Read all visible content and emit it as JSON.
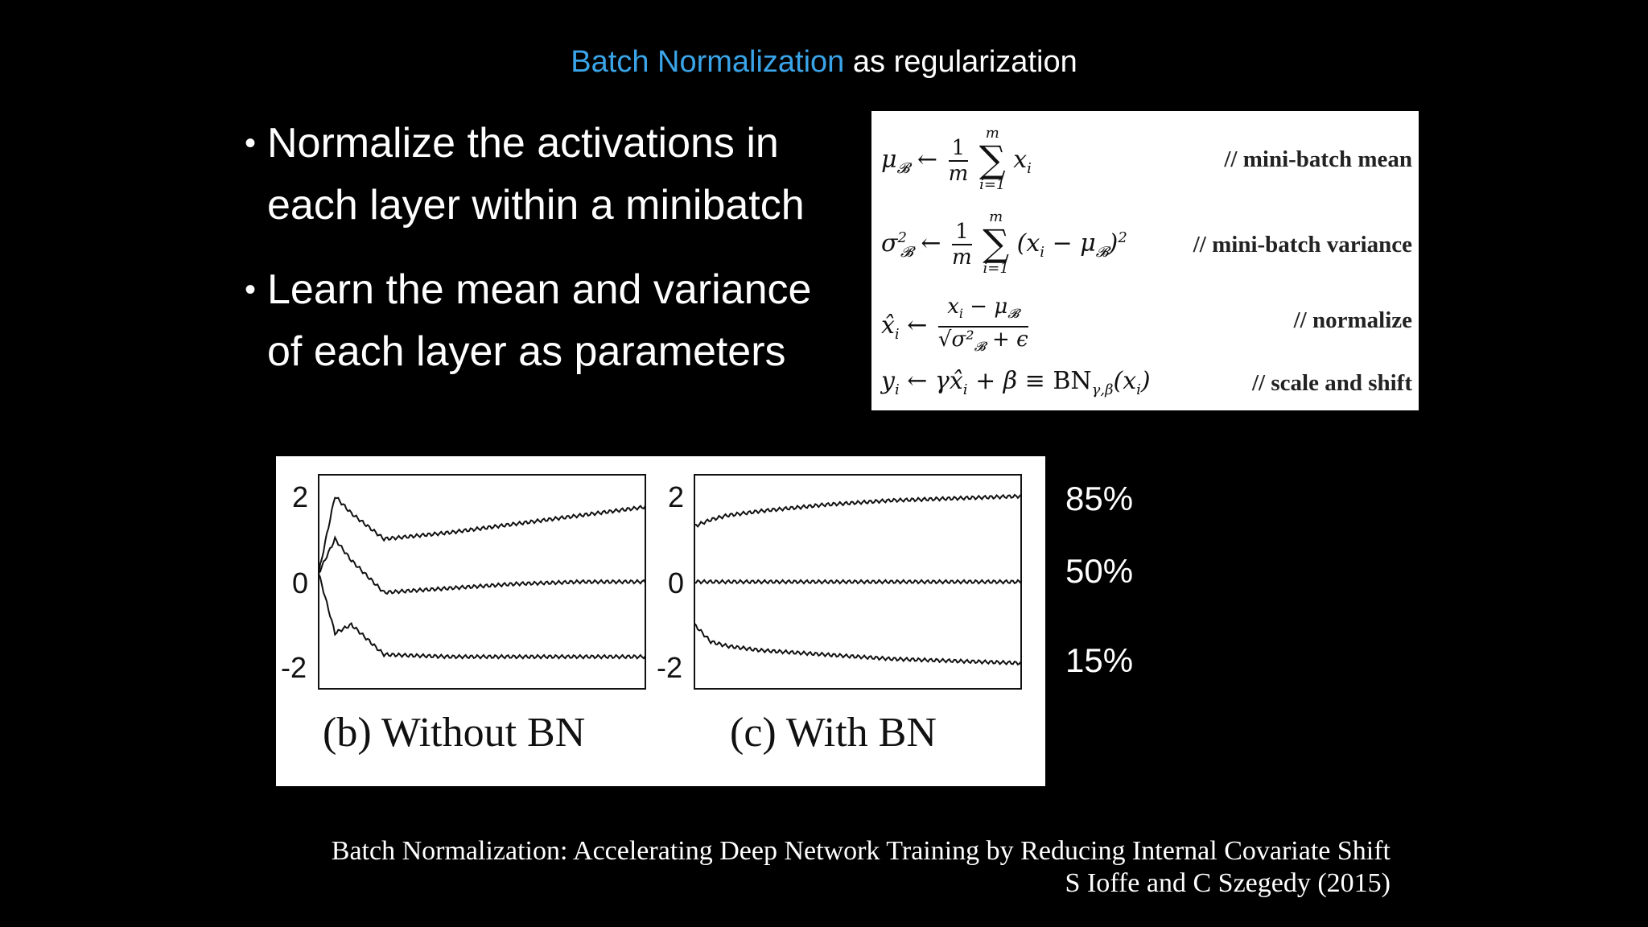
{
  "slide": {
    "title_accent": "Batch Normalization",
    "title_rest": "as regularization",
    "accent_color": "#3aa4e8"
  },
  "bullets": [
    {
      "line1": "Normalize the activations in",
      "line2": "each layer within a minibatch"
    },
    {
      "line1": "Learn the mean and variance",
      "line2": "of each layer as parameters"
    }
  ],
  "equations": {
    "comment_mean": "// mini-batch mean",
    "comment_variance": "// mini-batch variance",
    "comment_normalize": "// normalize",
    "comment_scale": "// scale and shift"
  },
  "figure": {
    "panel_b_caption": "(b) Without BN",
    "panel_c_caption": "(c) With BN",
    "ytick_top": "2",
    "ytick_mid": "0",
    "ytick_bottom": "-2"
  },
  "percentiles": {
    "p85": "85%",
    "p50": "50%",
    "p15": "15%"
  },
  "citation": {
    "line1": "Batch Normalization: Accelerating Deep Network Training by Reducing Internal Covariate Shift",
    "line2": "S Ioffe and C Szegedy (2015)"
  },
  "chart_data": [
    {
      "type": "line",
      "title": "(b) Without BN",
      "ylim": [
        -2.5,
        2.5
      ],
      "yticks": [
        2,
        0,
        -2
      ],
      "x": [
        0,
        0.05,
        0.1,
        0.2,
        0.4,
        0.6,
        0.8,
        1.0
      ],
      "series": [
        {
          "name": "85%",
          "values": [
            0.2,
            2.0,
            1.6,
            1.0,
            1.15,
            1.35,
            1.55,
            1.75
          ]
        },
        {
          "name": "50%",
          "values": [
            0.2,
            1.0,
            0.5,
            -0.25,
            -0.15,
            -0.05,
            0.0,
            0.0
          ]
        },
        {
          "name": "15%",
          "values": [
            0.2,
            -1.2,
            -1.0,
            -1.7,
            -1.75,
            -1.75,
            -1.75,
            -1.75
          ]
        }
      ]
    },
    {
      "type": "line",
      "title": "(c) With BN",
      "ylim": [
        -2.5,
        2.5
      ],
      "yticks": [
        2,
        0,
        -2
      ],
      "x": [
        0,
        0.05,
        0.1,
        0.2,
        0.4,
        0.6,
        0.8,
        1.0
      ],
      "series": [
        {
          "name": "85%",
          "values": [
            1.3,
            1.45,
            1.55,
            1.65,
            1.8,
            1.9,
            1.95,
            2.0
          ]
        },
        {
          "name": "50%",
          "values": [
            0.0,
            0.0,
            0.0,
            0.0,
            0.0,
            0.0,
            0.0,
            0.0
          ]
        },
        {
          "name": "15%",
          "values": [
            -1.0,
            -1.4,
            -1.5,
            -1.6,
            -1.7,
            -1.8,
            -1.85,
            -1.9
          ]
        }
      ]
    }
  ]
}
